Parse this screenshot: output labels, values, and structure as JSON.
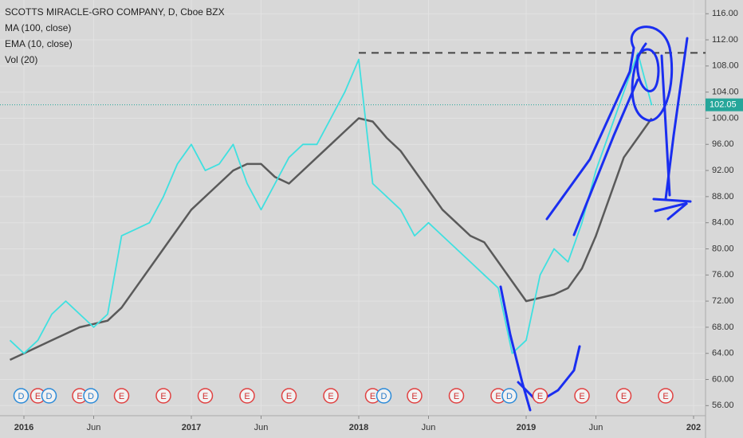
{
  "chart_data": {
    "type": "line",
    "title": "SCOTTS MIRACLE-GRO COMPANY, D, Cboe BZX",
    "volume_label": "Vol (20)",
    "categories": [
      "2015-12",
      "2016-01",
      "2016-02",
      "2016-03",
      "2016-04",
      "2016-05",
      "2016-06",
      "2016-07",
      "2016-08",
      "2016-09",
      "2016-10",
      "2016-11",
      "2016-12",
      "2017-01",
      "2017-02",
      "2017-03",
      "2017-04",
      "2017-05",
      "2017-06",
      "2017-07",
      "2017-08",
      "2017-09",
      "2017-10",
      "2017-11",
      "2017-12",
      "2018-01",
      "2018-02",
      "2018-03",
      "2018-04",
      "2018-05",
      "2018-06",
      "2018-07",
      "2018-08",
      "2018-09",
      "2018-10",
      "2018-11",
      "2018-12",
      "2019-01",
      "2019-02",
      "2019-03",
      "2019-04",
      "2019-05",
      "2019-06",
      "2019-07",
      "2019-08",
      "2019-09",
      "2019-10"
    ],
    "series": [
      {
        "name": "MA (100, close)",
        "color": "#5a5a5a",
        "values": [
          63,
          64,
          65,
          66,
          67,
          68,
          68.5,
          69,
          71,
          74,
          77,
          80,
          83,
          86,
          88,
          90,
          92,
          93,
          93,
          91,
          90,
          92,
          94,
          96,
          98,
          100,
          99.5,
          97,
          95,
          92,
          89,
          86,
          84,
          82,
          81,
          78,
          75,
          72,
          72.5,
          73,
          74,
          77,
          82,
          88,
          94,
          97,
          100
        ]
      },
      {
        "name": "EMA (10, close)",
        "color": "#3fe0e0",
        "values": [
          66,
          64,
          66,
          70,
          72,
          70,
          68,
          70,
          82,
          83,
          84,
          88,
          93,
          96,
          92,
          93,
          96,
          90,
          86,
          90,
          94,
          96,
          96,
          100,
          104,
          109,
          90,
          88,
          86,
          82,
          84,
          82,
          80,
          78,
          76,
          74,
          64,
          66,
          76,
          80,
          78,
          84,
          92,
          98,
          104,
          110,
          102
        ]
      }
    ],
    "last_price": {
      "value": 102.05,
      "label": "102.05"
    },
    "resistance": {
      "x": "2018-01",
      "value": 110
    },
    "ylim": [
      54.7,
      118.1
    ],
    "yticks": [
      {
        "value": 56,
        "label": "56.00"
      },
      {
        "value": 60,
        "label": "60.00"
      },
      {
        "value": 64,
        "label": "64.00"
      },
      {
        "value": 68,
        "label": "68.00"
      },
      {
        "value": 72,
        "label": "72.00"
      },
      {
        "value": 76,
        "label": "76.00"
      },
      {
        "value": 80,
        "label": "80.00"
      },
      {
        "value": 84,
        "label": "84.00"
      },
      {
        "value": 88,
        "label": "88.00"
      },
      {
        "value": 92,
        "label": "92.00"
      },
      {
        "value": 96,
        "label": "96.00"
      },
      {
        "value": 100,
        "label": "100.00"
      },
      {
        "value": 104,
        "label": "104.00"
      },
      {
        "value": 108,
        "label": "108.00"
      },
      {
        "value": 112,
        "label": "112.00"
      },
      {
        "value": 116,
        "label": "116.00"
      }
    ],
    "xticks": [
      {
        "value": "2016-01",
        "label": "2016"
      },
      {
        "value": "2016-06",
        "label": "Jun"
      },
      {
        "value": "2017-01",
        "label": "2017"
      },
      {
        "value": "2017-06",
        "label": "Jun"
      },
      {
        "value": "2018-01",
        "label": "2018"
      },
      {
        "value": "2018-06",
        "label": "Jun"
      },
      {
        "value": "2019-01",
        "label": "2019"
      },
      {
        "value": "2019-06",
        "label": "Jun"
      },
      {
        "value": "2020-01",
        "label": "202"
      }
    ],
    "events": [
      {
        "x": "2015-12",
        "label": "D"
      },
      {
        "x": "2016-02",
        "label": "E"
      },
      {
        "x": "2016-02",
        "label": "D"
      },
      {
        "x": "2016-05",
        "label": "E"
      },
      {
        "x": "2016-05",
        "label": "D"
      },
      {
        "x": "2016-08",
        "label": "E"
      },
      {
        "x": "2016-11",
        "label": "E"
      },
      {
        "x": "2017-02",
        "label": "E"
      },
      {
        "x": "2017-05",
        "label": "E"
      },
      {
        "x": "2017-08",
        "label": "E"
      },
      {
        "x": "2017-11",
        "label": "E"
      },
      {
        "x": "2018-02",
        "label": "E"
      },
      {
        "x": "2018-02",
        "label": "D"
      },
      {
        "x": "2018-05",
        "label": "E"
      },
      {
        "x": "2018-08",
        "label": "E"
      },
      {
        "x": "2018-11",
        "label": "E"
      },
      {
        "x": "2018-11",
        "label": "D"
      },
      {
        "x": "2019-02",
        "label": "E"
      },
      {
        "x": "2019-05",
        "label": "E"
      },
      {
        "x": "2019-08",
        "label": "E"
      },
      {
        "x": "2019-11",
        "label": "E"
      }
    ],
    "grid": true
  }
}
